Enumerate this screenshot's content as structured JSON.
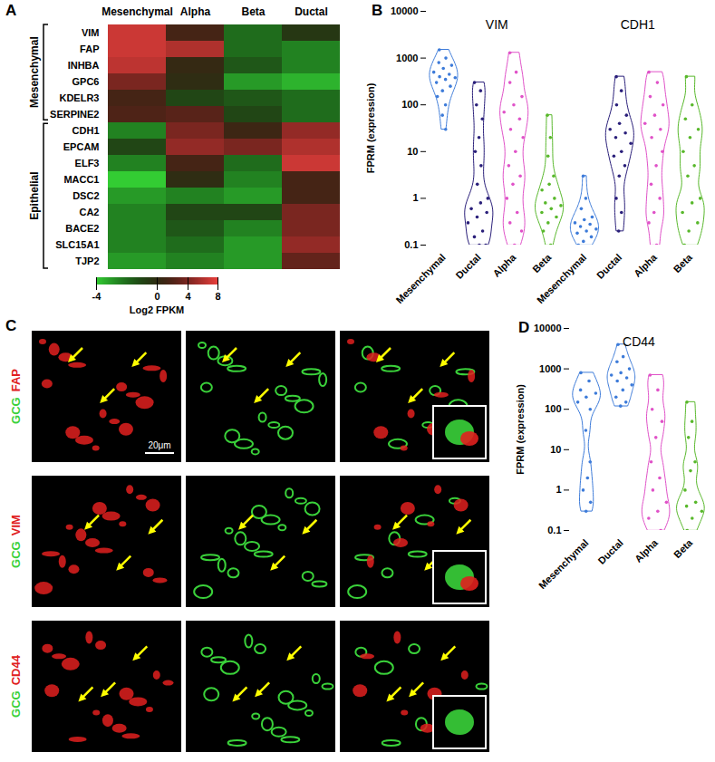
{
  "chart_data": [
    {
      "panel": "A",
      "type": "heatmap",
      "columns": [
        "Mesenchymal",
        "Alpha",
        "Beta",
        "Ductal"
      ],
      "rows": [
        "VIM",
        "FAP",
        "INHBA",
        "GPC6",
        "KDELR3",
        "SERPINE2",
        "CDH1",
        "EPCAM",
        "ELF3",
        "MACC1",
        "DSC2",
        "CA2",
        "BACE2",
        "SLC15A1",
        "TJP2"
      ],
      "row_groups": [
        {
          "name": "Mesenchymal",
          "rows": [
            "VIM",
            "FAP",
            "INHBA",
            "GPC6",
            "KDELR3",
            "SERPINE2"
          ]
        },
        {
          "name": "Epithelial",
          "rows": [
            "CDH1",
            "EPCAM",
            "ELF3",
            "MACC1",
            "DSC2",
            "CA2",
            "BACE2",
            "SLC15A1",
            "TJP2"
          ]
        }
      ],
      "values": [
        [
          7,
          1.5,
          -2,
          -0.5
        ],
        [
          7,
          6,
          -2,
          -2.5
        ],
        [
          6.5,
          0.5,
          -1.5,
          -2.5
        ],
        [
          4,
          0,
          -3,
          -3.5
        ],
        [
          1.5,
          -1,
          -1.5,
          -2
        ],
        [
          2,
          2.5,
          -1,
          -2
        ],
        [
          -2.5,
          4,
          1,
          5
        ],
        [
          -1,
          5,
          4,
          6
        ],
        [
          -2.5,
          1.5,
          -2,
          7
        ],
        [
          -4,
          0,
          -2.5,
          1.5
        ],
        [
          -3,
          -2.5,
          -3,
          1.5
        ],
        [
          -2.5,
          -1,
          -1,
          4
        ],
        [
          -2.5,
          -1.5,
          -2.5,
          4
        ],
        [
          -2.5,
          -2,
          -3,
          5
        ],
        [
          -3,
          -2.5,
          -3,
          3
        ]
      ],
      "colorbar": {
        "range": [
          -4,
          8
        ],
        "ticks": [
          -4,
          0,
          4,
          8
        ],
        "label": "Log2 FPKM",
        "colors": [
          "#33cc33",
          "#000000",
          "#e8403c"
        ]
      }
    },
    {
      "panel": "B",
      "type": "violin",
      "log": "y",
      "y_label": "FPRM (expression)",
      "ylim": [
        0.1,
        10000
      ],
      "yticks": [
        0.1,
        1,
        10,
        100,
        1000,
        10000
      ],
      "series": [
        {
          "name": "VIM",
          "groups": [
            {
              "name": "Mesenchymal",
              "color": "#3d7bd9",
              "values": [
                1500,
                1000,
                800,
                700,
                600,
                500,
                450,
                400,
                380,
                350,
                300,
                250,
                200,
                150,
                100,
                60,
                30
              ]
            },
            {
              "name": "Ductal",
              "color": "#2a1f7a",
              "values": [
                300,
                200,
                100,
                50,
                20,
                10,
                5,
                2,
                1,
                0.8,
                0.6,
                0.5,
                0.4,
                0.3,
                0.2,
                0.15,
                0.1,
                0.1
              ]
            },
            {
              "name": "Alpha",
              "color": "#e052c8",
              "values": [
                1300,
                500,
                300,
                150,
                100,
                70,
                50,
                30,
                20,
                10,
                5,
                3,
                2,
                1,
                0.5,
                0.3,
                0.2,
                0.1
              ]
            },
            {
              "name": "Beta",
              "color": "#58b82b",
              "values": [
                60,
                20,
                8,
                3,
                2,
                1.5,
                1,
                0.8,
                0.7,
                0.6,
                0.5,
                0.4,
                0.3,
                0.2,
                0.1
              ]
            }
          ]
        },
        {
          "name": "CDH1",
          "groups": [
            {
              "name": "Mesenchymal",
              "color": "#3d7bd9",
              "values": [
                3,
                1,
                0.6,
                0.4,
                0.35,
                0.3,
                0.28,
                0.25,
                0.22,
                0.2,
                0.18,
                0.15,
                0.12,
                0.1
              ]
            },
            {
              "name": "Ductal",
              "color": "#2a1f7a",
              "values": [
                400,
                200,
                100,
                60,
                40,
                30,
                25,
                20,
                15,
                10,
                8,
                5,
                3,
                1,
                0.5,
                0.2
              ]
            },
            {
              "name": "Alpha",
              "color": "#e052c8",
              "values": [
                500,
                300,
                150,
                100,
                60,
                40,
                30,
                20,
                10,
                5,
                2,
                1,
                0.5,
                0.3,
                0.1
              ]
            },
            {
              "name": "Beta",
              "color": "#58b82b",
              "values": [
                400,
                100,
                50,
                30,
                20,
                10,
                5,
                3,
                1,
                0.8,
                0.5,
                0.3,
                0.2,
                0.1
              ]
            }
          ]
        }
      ]
    },
    {
      "panel": "D",
      "type": "violin",
      "log": "y",
      "y_label": "FPRM (expression)",
      "ylim": [
        0.1,
        10000
      ],
      "yticks": [
        0.1,
        1,
        10,
        100,
        1000,
        10000
      ],
      "series": [
        {
          "name": "CD44",
          "groups": [
            {
              "name": "Mesenchymal",
              "color": "#3d7bd9",
              "values": [
                800,
                500,
                300,
                250,
                200,
                150,
                100,
                30,
                5,
                2,
                1,
                0.5,
                0.3
              ]
            },
            {
              "name": "Ductal",
              "color": "#3d7bd9",
              "values": [
                4000,
                2000,
                1500,
                1000,
                800,
                700,
                600,
                500,
                400,
                300,
                200,
                150,
                120
              ]
            },
            {
              "name": "Alpha",
              "color": "#e052c8",
              "values": [
                700,
                300,
                100,
                50,
                20,
                5,
                2,
                1,
                0.5,
                0.3,
                0.2,
                0.1
              ]
            },
            {
              "name": "Beta",
              "color": "#58b82b",
              "values": [
                150,
                50,
                20,
                5,
                3,
                1,
                0.5,
                0.4,
                0.3,
                0.2,
                0.1
              ]
            }
          ]
        }
      ]
    }
  ],
  "images": {
    "panel": "C",
    "rows": [
      {
        "counterstain": "GCG",
        "stain": "FAP"
      },
      {
        "counterstain": "GCG",
        "stain": "VIM"
      },
      {
        "counterstain": "GCG",
        "stain": "CD44"
      }
    ],
    "scale_bar": "20μm"
  }
}
